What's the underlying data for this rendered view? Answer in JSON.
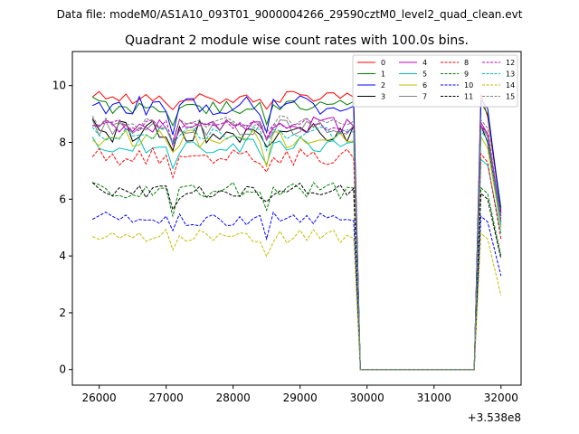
{
  "header": {
    "suptitle": "Data file: modeM0/AS1A10_093T01_9000004266_29590cztM0_level2_quad_clean.evt"
  },
  "chart_data": {
    "type": "line",
    "title": "Quadrant 2 module wise count rates with 100.0s bins.",
    "xlabel": "",
    "ylabel": "",
    "x_offset_label": "+3.538e8",
    "xlim": [
      25600,
      32300
    ],
    "ylim": [
      -0.55,
      11.2
    ],
    "xticks": [
      26000,
      27000,
      28000,
      29000,
      30000,
      31000,
      32000
    ],
    "yticks": [
      0,
      2,
      4,
      6,
      8,
      10
    ],
    "grid": false,
    "legend_position": "top-right",
    "gap": {
      "drop_start": 29800,
      "gap_start": 29900,
      "gap_end": 31600,
      "rise_end": 31700
    },
    "series": [
      {
        "name": "0",
        "color": "#ff0000",
        "dash": "solid",
        "base": 9.6,
        "amp": 0.25,
        "tail": [
          9.7,
          8.9,
          5.6
        ]
      },
      {
        "name": "1",
        "color": "#008000",
        "dash": "solid",
        "base": 9.3,
        "amp": 0.3,
        "tail": [
          9.4,
          9.0,
          5.7
        ]
      },
      {
        "name": "2",
        "color": "#0000ff",
        "dash": "solid",
        "base": 9.3,
        "amp": 0.35,
        "tail": [
          9.5,
          9.2,
          5.5
        ]
      },
      {
        "name": "3",
        "color": "#000000",
        "dash": "solid",
        "base": 8.4,
        "amp": 0.45,
        "tail": [
          8.6,
          8.0,
          5.2
        ]
      },
      {
        "name": "4",
        "color": "#bf00bf",
        "dash": "solid",
        "base": 8.6,
        "amp": 0.3,
        "tail": [
          8.7,
          8.3,
          5.4
        ]
      },
      {
        "name": "5",
        "color": "#00bfbf",
        "dash": "solid",
        "base": 7.9,
        "amp": 0.3,
        "tail": [
          7.4,
          7.2,
          4.8
        ]
      },
      {
        "name": "6",
        "color": "#bfbf00",
        "dash": "solid",
        "base": 8.1,
        "amp": 0.35,
        "tail": [
          8.2,
          7.8,
          5.0
        ]
      },
      {
        "name": "7",
        "color": "#808080",
        "dash": "solid",
        "base": 8.5,
        "amp": 0.3,
        "tail": [
          8.6,
          8.2,
          5.2
        ]
      },
      {
        "name": "8",
        "color": "#ff0000",
        "dash": "dashed",
        "base": 7.5,
        "amp": 0.3,
        "tail": [
          7.6,
          7.3,
          4.6
        ]
      },
      {
        "name": "9",
        "color": "#008000",
        "dash": "dashed",
        "base": 6.3,
        "amp": 0.3,
        "tail": [
          6.4,
          6.2,
          4.0
        ]
      },
      {
        "name": "10",
        "color": "#0000ff",
        "dash": "dashed",
        "base": 5.3,
        "amp": 0.25,
        "tail": [
          5.4,
          5.2,
          3.3
        ]
      },
      {
        "name": "11",
        "color": "#000000",
        "dash": "dashed",
        "base": 6.3,
        "amp": 0.3,
        "tail": [
          6.2,
          6.0,
          3.9
        ]
      },
      {
        "name": "12",
        "color": "#bf00bf",
        "dash": "dashed",
        "base": 8.6,
        "amp": 0.25,
        "tail": [
          8.6,
          8.3,
          5.3
        ]
      },
      {
        "name": "13",
        "color": "#00bfbf",
        "dash": "dashed",
        "base": 8.3,
        "amp": 0.25,
        "tail": [
          8.4,
          8.1,
          5.1
        ]
      },
      {
        "name": "14",
        "color": "#bfbf00",
        "dash": "dashed",
        "base": 4.7,
        "amp": 0.25,
        "tail": [
          4.8,
          4.6,
          2.6
        ]
      },
      {
        "name": "15",
        "color": "#808080",
        "dash": "dashed",
        "base": 8.7,
        "amp": 0.25,
        "tail": [
          8.8,
          8.5,
          5.4
        ]
      }
    ]
  }
}
